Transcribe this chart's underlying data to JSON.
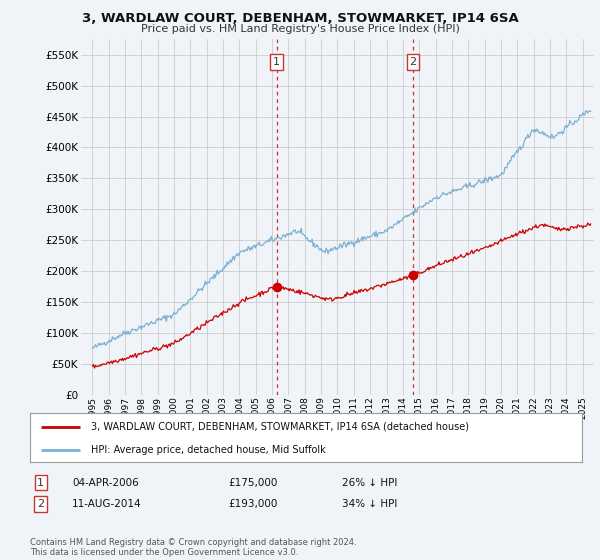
{
  "title": "3, WARDLAW COURT, DEBENHAM, STOWMARKET, IP14 6SA",
  "subtitle": "Price paid vs. HM Land Registry's House Price Index (HPI)",
  "legend_line1": "3, WARDLAW COURT, DEBENHAM, STOWMARKET, IP14 6SA (detached house)",
  "legend_line2": "HPI: Average price, detached house, Mid Suffolk",
  "sale1_date": "04-APR-2006",
  "sale1_price": "£175,000",
  "sale1_pct": "26% ↓ HPI",
  "sale2_date": "11-AUG-2014",
  "sale2_price": "£193,000",
  "sale2_pct": "34% ↓ HPI",
  "footnote": "Contains HM Land Registry data © Crown copyright and database right 2024.\nThis data is licensed under the Open Government Licence v3.0.",
  "red_color": "#cc0000",
  "blue_color": "#7ab0d4",
  "background_color": "#f0f4f8",
  "grid_color": "#cccccc",
  "ylim": [
    0,
    575000
  ],
  "yticks": [
    0,
    50000,
    100000,
    150000,
    200000,
    250000,
    300000,
    350000,
    400000,
    450000,
    500000,
    550000
  ],
  "sale1_year": 2006.27,
  "sale1_value": 175000,
  "sale2_year": 2014.62,
  "sale2_value": 193000,
  "xlim_left": 1994.3,
  "xlim_right": 2025.7
}
